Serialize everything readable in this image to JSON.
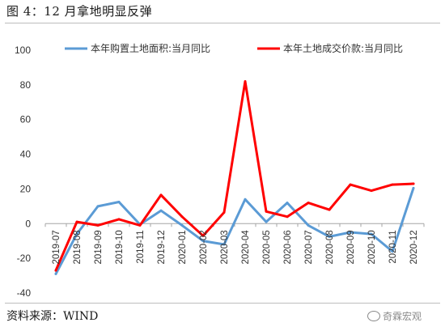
{
  "figure": {
    "title": "图 4：12 月拿地明显反弹",
    "source": "资料来源：WIND",
    "watermark": "奇霖宏观",
    "watermark_icon": "wechat-icon"
  },
  "chart_data": {
    "type": "line",
    "categories": [
      "2019-07",
      "2019-08",
      "2019-09",
      "2019-10",
      "2019-11",
      "2019-12",
      "2020-01",
      "2020-02",
      "2020-03",
      "2020-04",
      "2020-05",
      "2020-06",
      "2020-07",
      "2020-08",
      "2020-09",
      "2020-10",
      "2020-11",
      "2020-12"
    ],
    "yticks": [
      -40,
      -20,
      0,
      20,
      40,
      60,
      80,
      100
    ],
    "ylim": [
      -40,
      100
    ],
    "grid": false,
    "legend_position": "top",
    "series": [
      {
        "name": "本年购置土地面积:当月同比",
        "color": "#5b9bd5",
        "values": [
          -29,
          -6,
          10,
          12.5,
          -0.5,
          7.5,
          -1,
          -10,
          -12,
          14,
          1,
          12,
          -1,
          -7.5,
          -5,
          -6,
          -16,
          20.5
        ]
      },
      {
        "name": "本年土地成交价款:当月同比",
        "color": "#ff0000",
        "values": [
          -27,
          1,
          -1,
          2.5,
          -1,
          16.5,
          4,
          -7,
          6.5,
          82,
          7,
          4,
          12,
          8,
          22.5,
          19,
          22.5,
          23
        ]
      }
    ]
  }
}
